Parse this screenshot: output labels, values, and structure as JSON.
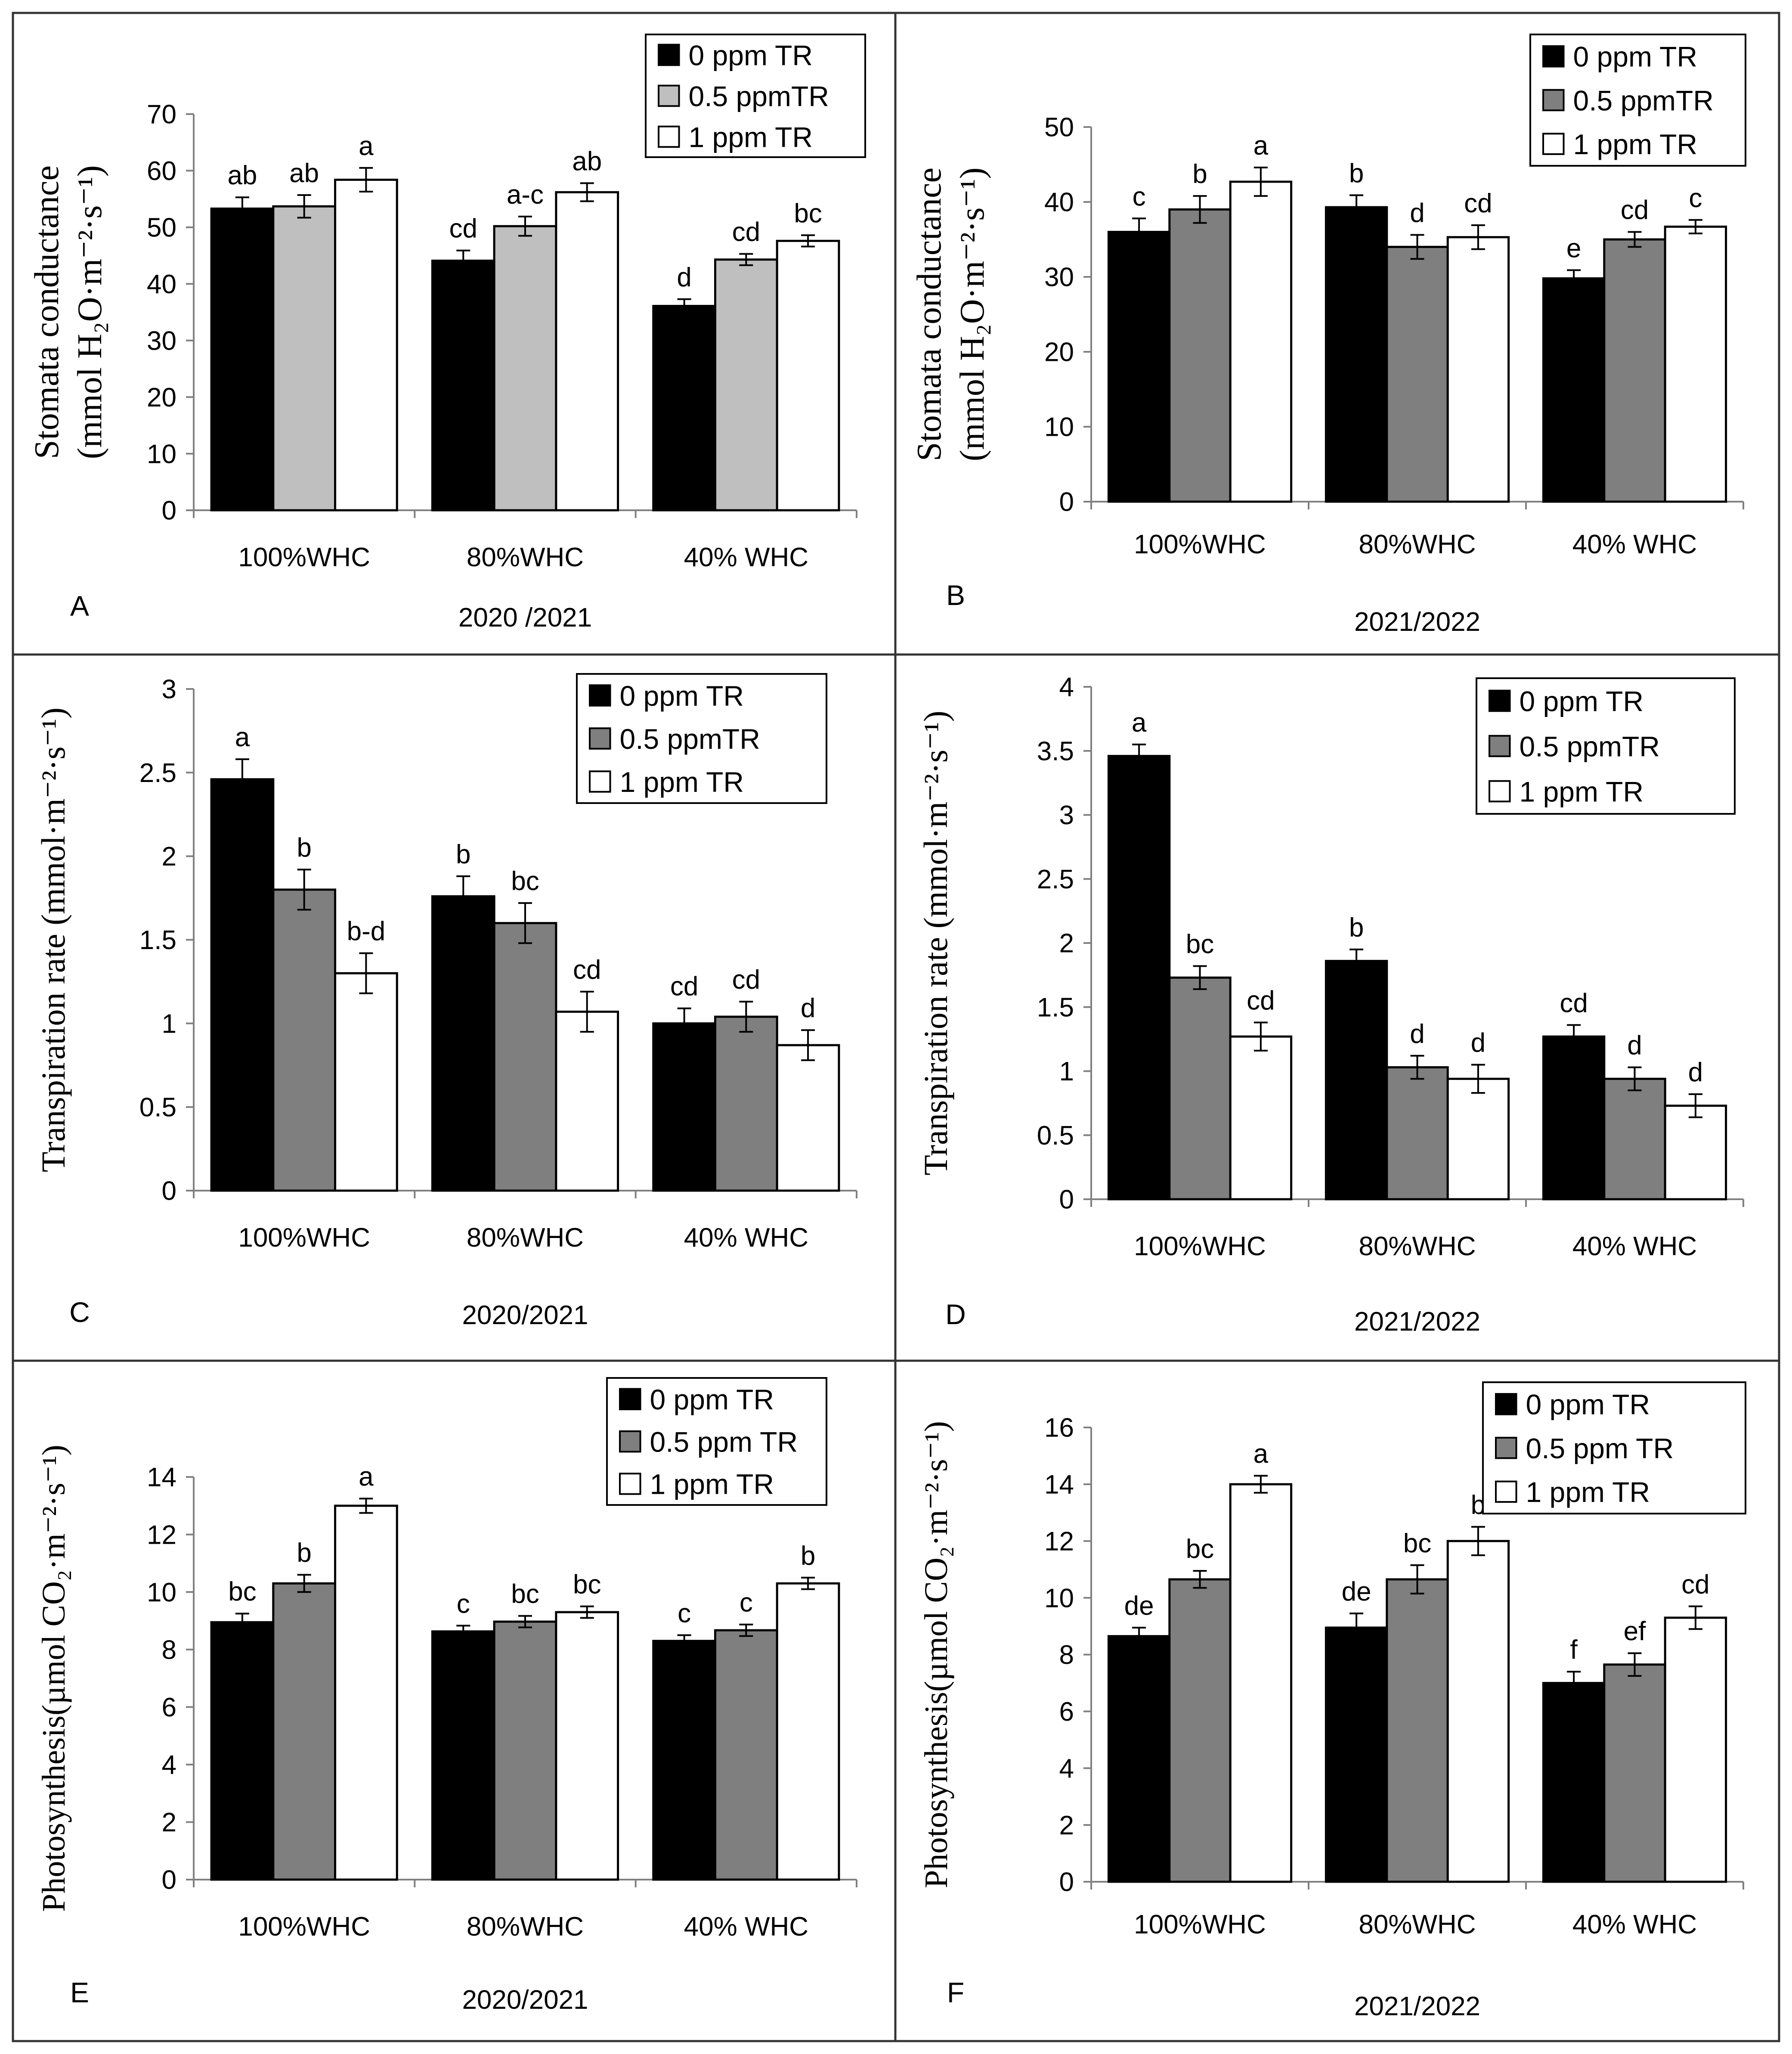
{
  "figure": {
    "groups": [
      "100%WHC",
      "80%WHC",
      "40% WHC"
    ],
    "colors": {
      "dark_gray_fill": "#7f7f7f",
      "light_gray_fill": "#bfbfbf",
      "black_fill": "#000000",
      "white_fill": "#ffffff"
    }
  },
  "chart_data": [
    {
      "panel": "A",
      "type": "bar",
      "xlabel": "2020 /2021",
      "ylabel_line1": "Stomata conductance",
      "ylabel_line2": "(mmol H₂O·m⁻²·s⁻¹)",
      "ylim": [
        0,
        70
      ],
      "yticks": [
        "0",
        "10",
        "20",
        "30",
        "40",
        "50",
        "60",
        "70"
      ],
      "categories": [
        "100%WHC",
        "80%WHC",
        "40% WHC"
      ],
      "series": [
        {
          "name": "0 ppm TR",
          "color": "#000000",
          "values": [
            53.3,
            44.1,
            36.1
          ],
          "err": [
            2.0,
            1.8,
            1.2
          ],
          "letters": [
            "ab",
            "cd",
            "d"
          ]
        },
        {
          "name": "0.5 ppmTR",
          "color": "#bfbfbf",
          "values": [
            53.7,
            50.2,
            44.3
          ],
          "err": [
            2.0,
            1.7,
            1.0
          ],
          "letters": [
            "ab",
            "a-c",
            "cd"
          ]
        },
        {
          "name": "1 ppm TR",
          "color": "#ffffff",
          "values": [
            58.4,
            56.2,
            47.6
          ],
          "err": [
            2.1,
            1.6,
            1.0
          ],
          "letters": [
            "a",
            "ab",
            "bc"
          ]
        }
      ]
    },
    {
      "panel": "B",
      "type": "bar",
      "xlabel": "2021/2022",
      "ylabel_line1": "Stomata conductance",
      "ylabel_line2": "(mmol H₂O·m⁻²·s⁻¹)",
      "ylim": [
        0,
        50
      ],
      "yticks": [
        "0",
        "10",
        "20",
        "30",
        "40",
        "50"
      ],
      "categories": [
        "100%WHC",
        "80%WHC",
        "40% WHC"
      ],
      "series": [
        {
          "name": "0 ppm TR",
          "color": "#000000",
          "values": [
            36.0,
            39.3,
            29.8
          ],
          "err": [
            1.8,
            1.6,
            1.1
          ],
          "letters": [
            "c",
            "b",
            "e"
          ]
        },
        {
          "name": "0.5 ppmTR",
          "color": "#7f7f7f",
          "values": [
            39.0,
            34.0,
            35.0
          ],
          "err": [
            1.8,
            1.6,
            1.0
          ],
          "letters": [
            "b",
            "d",
            "cd"
          ]
        },
        {
          "name": "1 ppm TR",
          "color": "#ffffff",
          "values": [
            42.7,
            35.3,
            36.7
          ],
          "err": [
            1.9,
            1.6,
            0.9
          ],
          "letters": [
            "a",
            "cd",
            "c"
          ]
        }
      ]
    },
    {
      "panel": "C",
      "type": "bar",
      "xlabel": "2020/2021",
      "ylabel_line1": "Transpiration  rate (mmol·m⁻²·s⁻¹)",
      "ylabel_line2": "",
      "ylim": [
        0,
        3
      ],
      "yticks": [
        "0",
        "0.5",
        "1",
        "1.5",
        "2",
        "2.5",
        "3"
      ],
      "categories": [
        "100%WHC",
        "80%WHC",
        "40% WHC"
      ],
      "series": [
        {
          "name": "0 ppm TR",
          "color": "#000000",
          "values": [
            2.46,
            1.76,
            1.0
          ],
          "err": [
            0.12,
            0.12,
            0.09
          ],
          "letters": [
            "a",
            "b",
            "cd"
          ]
        },
        {
          "name": "0.5 ppmTR",
          "color": "#7f7f7f",
          "values": [
            1.8,
            1.6,
            1.04
          ],
          "err": [
            0.12,
            0.12,
            0.09
          ],
          "letters": [
            "b",
            "bc",
            "cd"
          ]
        },
        {
          "name": "1 ppm TR",
          "color": "#ffffff",
          "values": [
            1.3,
            1.07,
            0.87
          ],
          "err": [
            0.12,
            0.12,
            0.09
          ],
          "letters": [
            "b-d",
            "cd",
            "d"
          ]
        }
      ]
    },
    {
      "panel": "D",
      "type": "bar",
      "xlabel": "2021/2022",
      "ylabel_line1": "Transpiration  rate (mmol·m⁻²·s⁻¹)",
      "ylabel_line2": "",
      "ylim": [
        0,
        4
      ],
      "yticks": [
        "0",
        "0.5",
        "1",
        "1.5",
        "2",
        "2.5",
        "3",
        "3.5",
        "4"
      ],
      "categories": [
        "100%WHC",
        "80%WHC",
        "40% WHC"
      ],
      "series": [
        {
          "name": "0 ppm TR",
          "color": "#000000",
          "values": [
            3.46,
            1.86,
            1.27
          ],
          "err": [
            0.09,
            0.09,
            0.09
          ],
          "letters": [
            "a",
            "b",
            "cd"
          ]
        },
        {
          "name": "0.5 ppmTR",
          "color": "#7f7f7f",
          "values": [
            1.73,
            1.03,
            0.94
          ],
          "err": [
            0.09,
            0.09,
            0.09
          ],
          "letters": [
            "bc",
            "d",
            "d"
          ]
        },
        {
          "name": "1 ppm TR",
          "color": "#ffffff",
          "values": [
            1.27,
            0.94,
            0.73
          ],
          "err": [
            0.11,
            0.11,
            0.09
          ],
          "letters": [
            "cd",
            "d",
            "d"
          ]
        }
      ]
    },
    {
      "panel": "E",
      "type": "bar",
      "xlabel": "2020/2021",
      "ylabel_line1": "Photosynthesis(µmol CO₂·m⁻²·s⁻¹)",
      "ylabel_line2": "",
      "ylim": [
        0,
        14
      ],
      "yticks": [
        "0",
        "2",
        "4",
        "6",
        "8",
        "10",
        "12",
        "14"
      ],
      "categories": [
        "100%WHC",
        "80%WHC",
        "40% WHC"
      ],
      "series": [
        {
          "name": "0 ppm TR",
          "color": "#000000",
          "values": [
            8.95,
            8.63,
            8.3
          ],
          "err": [
            0.3,
            0.2,
            0.2
          ],
          "letters": [
            "bc",
            "c",
            "c"
          ]
        },
        {
          "name": "0.5 ppm TR",
          "color": "#7f7f7f",
          "values": [
            10.3,
            8.97,
            8.67
          ],
          "err": [
            0.3,
            0.2,
            0.2
          ],
          "letters": [
            "b",
            "bc",
            "c"
          ]
        },
        {
          "name": "1 ppm TR",
          "color": "#ffffff",
          "values": [
            13.0,
            9.3,
            10.3
          ],
          "err": [
            0.25,
            0.2,
            0.2
          ],
          "letters": [
            "a",
            "bc",
            "b"
          ]
        }
      ]
    },
    {
      "panel": "F",
      "type": "bar",
      "xlabel": "2021/2022",
      "ylabel_line1": "Photosynthesis(µmol CO₂·m⁻²·s⁻¹)",
      "ylabel_line2": "",
      "ylim": [
        0,
        16
      ],
      "yticks": [
        "0",
        "2",
        "4",
        "6",
        "8",
        "10",
        "12",
        "14",
        "16"
      ],
      "categories": [
        "100%WHC",
        "80%WHC",
        "40% WHC"
      ],
      "series": [
        {
          "name": "0 ppm TR",
          "color": "#000000",
          "values": [
            8.65,
            8.95,
            7.0
          ],
          "err": [
            0.3,
            0.5,
            0.4
          ],
          "letters": [
            "de",
            "de",
            "f"
          ]
        },
        {
          "name": "0.5 ppm TR",
          "color": "#7f7f7f",
          "values": [
            10.65,
            10.65,
            7.65
          ],
          "err": [
            0.3,
            0.5,
            0.4
          ],
          "letters": [
            "bc",
            "bc",
            "ef"
          ]
        },
        {
          "name": "1 ppm TR",
          "color": "#ffffff",
          "values": [
            14.0,
            12.0,
            9.3
          ],
          "err": [
            0.3,
            0.5,
            0.4
          ],
          "letters": [
            "a",
            "b",
            "cd"
          ]
        }
      ]
    }
  ]
}
